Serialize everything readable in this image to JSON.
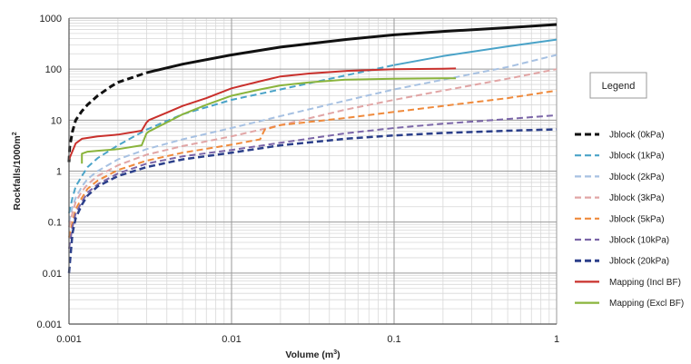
{
  "chart_data": {
    "type": "line",
    "x_scale": "log",
    "y_scale": "log",
    "xlim": [
      0.001,
      1
    ],
    "ylim": [
      0.001,
      1000
    ],
    "grid": true,
    "legend_position": "right",
    "xlabel_parts": [
      "Volume (m",
      "3",
      ")"
    ],
    "ylabel_parts": [
      "Rockfalls/1000m",
      "2"
    ],
    "x_ticks": [
      "0.001",
      "0.01",
      "0.1",
      "1"
    ],
    "y_ticks": [
      "0.001",
      "0.01",
      "0.1",
      "1",
      "10",
      "100",
      "1000"
    ],
    "legend_title": "Legend",
    "series": [
      {
        "name": "Jblock (0kPa)",
        "color": "#111111",
        "style": "dashed-to-solid",
        "width": 3,
        "x": [
          0.001,
          0.00101,
          0.00105,
          0.0011,
          0.0012,
          0.0013,
          0.0015,
          0.0018,
          0.002,
          0.003,
          0.005,
          0.01,
          0.02,
          0.05,
          0.1,
          0.2,
          0.5,
          1
        ],
        "y": [
          1.5,
          3,
          6,
          10,
          15,
          20,
          30,
          45,
          55,
          85,
          125,
          190,
          270,
          380,
          470,
          550,
          650,
          750
        ]
      },
      {
        "name": "Jblock (1kPa)",
        "color": "#4aa3c8",
        "style": "dashed-to-solid",
        "width": 2,
        "x": [
          0.001,
          0.00105,
          0.0011,
          0.0012,
          0.0013,
          0.0015,
          0.002,
          0.003,
          0.005,
          0.01,
          0.02,
          0.05,
          0.1,
          0.2,
          0.5,
          1
        ],
        "y": [
          0.15,
          0.3,
          0.5,
          0.8,
          1.2,
          1.8,
          3.2,
          6.5,
          13,
          25,
          40,
          75,
          120,
          180,
          280,
          380
        ]
      },
      {
        "name": "Jblock (2kPa)",
        "color": "#a7c1e2",
        "style": "dashed",
        "width": 2,
        "x": [
          0.001,
          0.00105,
          0.0011,
          0.0012,
          0.0013,
          0.0015,
          0.002,
          0.003,
          0.005,
          0.01,
          0.02,
          0.05,
          0.1,
          0.2,
          0.5,
          1
        ],
        "y": [
          0.1,
          0.2,
          0.3,
          0.5,
          0.7,
          1.0,
          1.7,
          2.7,
          4.2,
          7.0,
          12,
          24,
          40,
          62,
          110,
          190
        ]
      },
      {
        "name": "Jblock (3kPa)",
        "color": "#e1a5a5",
        "style": "dashed",
        "width": 2,
        "x": [
          0.001,
          0.00105,
          0.0011,
          0.0012,
          0.0013,
          0.0015,
          0.002,
          0.003,
          0.005,
          0.01,
          0.02,
          0.05,
          0.1,
          0.2,
          0.5,
          1
        ],
        "y": [
          0.08,
          0.15,
          0.25,
          0.4,
          0.55,
          0.8,
          1.3,
          2.1,
          3.1,
          4.8,
          8,
          16,
          25,
          38,
          65,
          100
        ]
      },
      {
        "name": "Jblock (5kPa)",
        "color": "#ef8a3c",
        "style": "dashed",
        "width": 2,
        "x": [
          0.001,
          0.00105,
          0.0011,
          0.0012,
          0.0013,
          0.0015,
          0.002,
          0.003,
          0.005,
          0.01,
          0.015,
          0.016,
          0.02,
          0.05,
          0.1,
          0.2,
          0.5,
          1
        ],
        "y": [
          0.05,
          0.1,
          0.18,
          0.3,
          0.45,
          0.65,
          1.05,
          1.6,
          2.3,
          3.3,
          4.2,
          6.5,
          8,
          11,
          14.5,
          19,
          27,
          38
        ]
      },
      {
        "name": "Jblock (10kPa)",
        "color": "#7b66a8",
        "style": "dashed",
        "width": 2,
        "x": [
          0.001,
          0.00105,
          0.0011,
          0.0012,
          0.0013,
          0.0015,
          0.002,
          0.003,
          0.005,
          0.01,
          0.02,
          0.05,
          0.1,
          0.2,
          0.5,
          1
        ],
        "y": [
          0.03,
          0.08,
          0.15,
          0.25,
          0.38,
          0.55,
          0.9,
          1.4,
          1.95,
          2.6,
          3.6,
          5.5,
          7,
          8.5,
          10.5,
          12.5
        ]
      },
      {
        "name": "Jblock (20kPa)",
        "color": "#2b3f8a",
        "style": "dashed",
        "width": 2.5,
        "x": [
          0.001,
          0.00105,
          0.0011,
          0.0012,
          0.0013,
          0.0015,
          0.002,
          0.003,
          0.005,
          0.01,
          0.02,
          0.05,
          0.1,
          0.2,
          0.5,
          1
        ],
        "y": [
          0.01,
          0.06,
          0.12,
          0.22,
          0.33,
          0.5,
          0.8,
          1.2,
          1.7,
          2.3,
          3.2,
          4.3,
          5.0,
          5.6,
          6.2,
          6.6
        ]
      },
      {
        "name": "Mapping (Incl BF)",
        "color": "#c9302c",
        "style": "solid",
        "width": 2,
        "x": [
          0.001,
          0.0011,
          0.0012,
          0.0015,
          0.002,
          0.0028,
          0.003,
          0.0031,
          0.004,
          0.005,
          0.007,
          0.01,
          0.015,
          0.02,
          0.03,
          0.05,
          0.1,
          0.2,
          0.24
        ],
        "y": [
          1.7,
          3.5,
          4.3,
          4.8,
          5.2,
          6.2,
          9,
          10,
          14,
          19,
          27,
          42,
          58,
          72,
          82,
          92,
          100,
          102,
          103
        ]
      },
      {
        "name": "Mapping (Excl BF)",
        "color": "#8ab43c",
        "style": "solid",
        "width": 2,
        "x": [
          0.0012,
          0.0012,
          0.0013,
          0.0015,
          0.002,
          0.0028,
          0.003,
          0.0031,
          0.004,
          0.005,
          0.007,
          0.01,
          0.015,
          0.02,
          0.03,
          0.05,
          0.1,
          0.2,
          0.24
        ],
        "y": [
          1.4,
          2.2,
          2.4,
          2.5,
          2.7,
          3.2,
          5.5,
          6,
          9,
          13,
          20,
          30,
          40,
          48,
          55,
          62,
          65,
          66,
          66
        ]
      }
    ]
  }
}
